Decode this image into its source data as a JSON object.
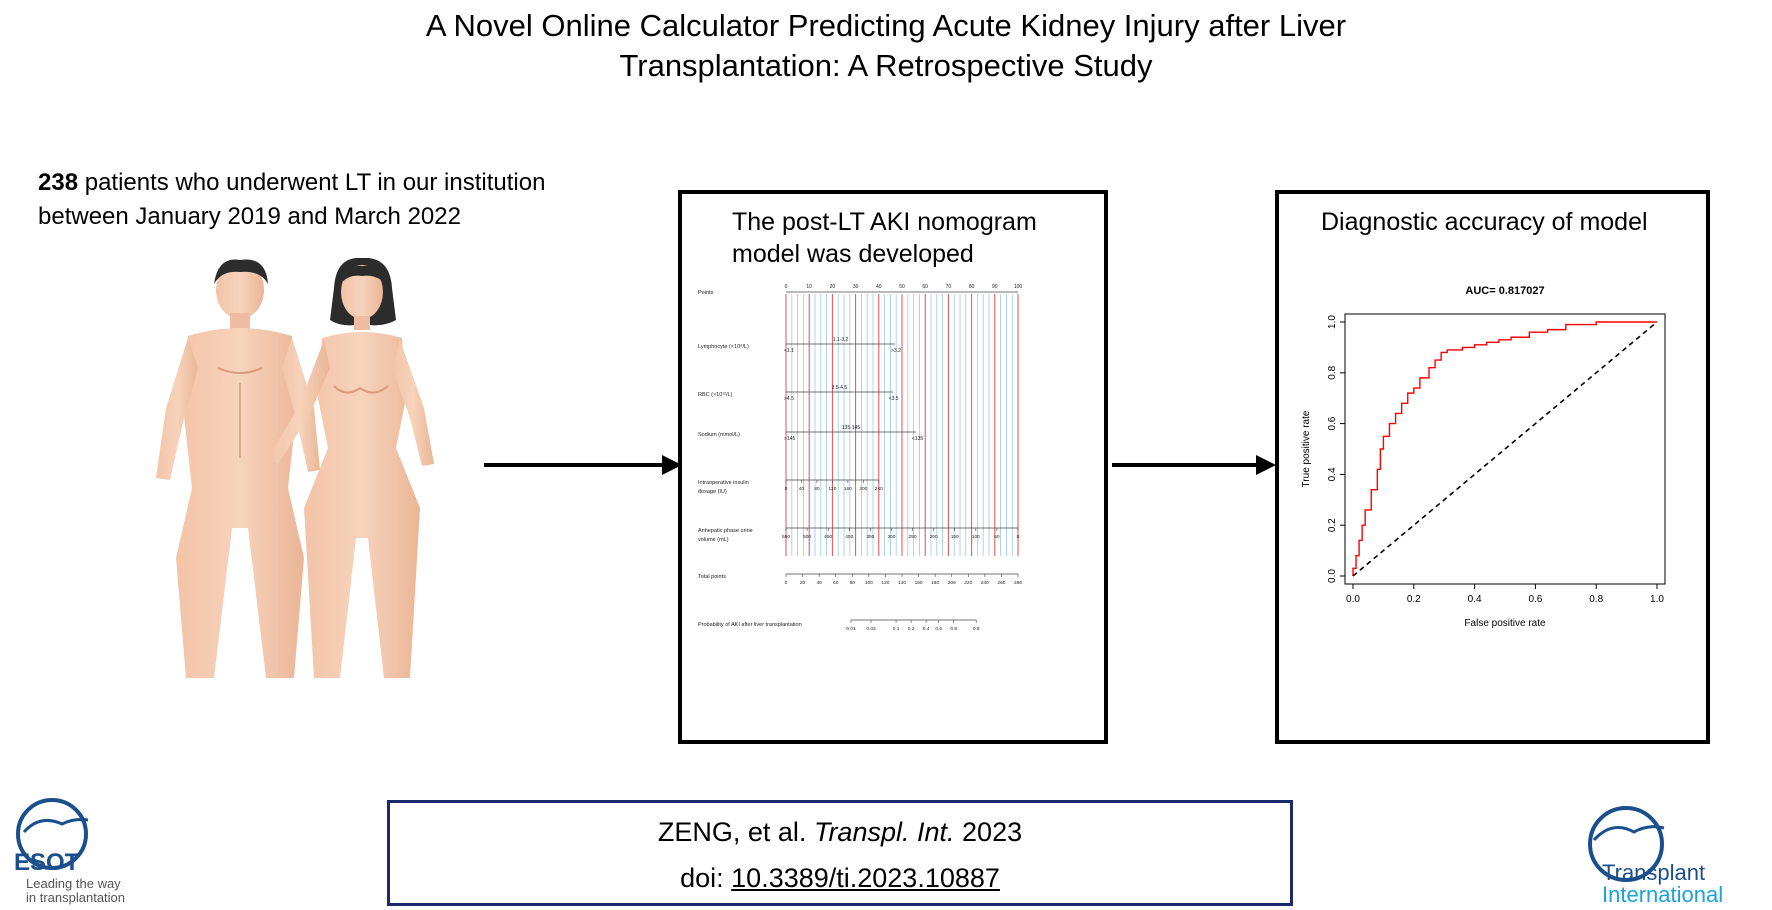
{
  "title": {
    "line1": "A Novel Online Calculator Predicting Acute Kidney Injury after Liver",
    "line2": "Transplantation: A Retrospective Study"
  },
  "intro": {
    "count": "238",
    "line1_rest": " patients who underwent LT in our institution",
    "line2": "between January 2019 and March 2022"
  },
  "nomogram": {
    "title_line1": "The post-LT AKI nomogram",
    "title_line2": "model was developed",
    "rows": [
      {
        "label": "Points"
      },
      {
        "label": "Lymphocyte (×10⁹/L)"
      },
      {
        "label": "RBC (×10¹²/L)"
      },
      {
        "label": "Sodium (mmol/L)"
      },
      {
        "label": "Intraoperative insulin",
        "label2": "dosage (IU)"
      },
      {
        "label": "Anhepatic phase urine",
        "label2": "volume (mL)"
      },
      {
        "label": "Total points"
      },
      {
        "label": "Probability of AKI after liver transplantation"
      }
    ],
    "points_ticks": [
      "0",
      "10",
      "20",
      "30",
      "40",
      "50",
      "60",
      "70",
      "80",
      "90",
      "100"
    ],
    "lymphocyte": {
      "mid": "1.1-3.2",
      "left": "<1.1",
      "right": ">3.2"
    },
    "rbc": {
      "mid": "3.5-4.5",
      "left": ">4.5",
      "right": "<3.5"
    },
    "sodium": {
      "mid": "135-145",
      "left": ">145",
      "right": "<135"
    },
    "insulin_ticks": [
      "0",
      "40",
      "80",
      "120",
      "160",
      "200",
      "240"
    ],
    "urine_ticks": [
      "550",
      "500",
      "450",
      "400",
      "350",
      "300",
      "250",
      "200",
      "150",
      "100",
      "50",
      "0"
    ],
    "total_ticks": [
      "0",
      "20",
      "40",
      "60",
      "80",
      "100",
      "120",
      "140",
      "160",
      "180",
      "200",
      "220",
      "240",
      "260",
      "280"
    ],
    "prob_ticks": [
      "0.01",
      "0.03",
      "0.1",
      "0.2",
      "0.4",
      "0.6",
      "0.8",
      "0.9"
    ]
  },
  "roc": {
    "panel_title": "Diagnostic accuracy of model",
    "chart_data": {
      "type": "line",
      "title": "AUC= 0.817027",
      "xlabel": "False positive rate",
      "ylabel": "True positive rate",
      "xlim": [
        0,
        1
      ],
      "ylim": [
        0,
        1
      ],
      "xticks": [
        "0.0",
        "0.2",
        "0.4",
        "0.6",
        "0.8",
        "1.0"
      ],
      "yticks": [
        "0.0",
        "0.2",
        "0.4",
        "0.6",
        "0.8",
        "1.0"
      ],
      "series": [
        {
          "color": "#ff0000",
          "x": [
            0.0,
            0.0,
            0.01,
            0.01,
            0.02,
            0.02,
            0.03,
            0.03,
            0.04,
            0.04,
            0.06,
            0.06,
            0.08,
            0.08,
            0.09,
            0.09,
            0.1,
            0.1,
            0.12,
            0.12,
            0.14,
            0.14,
            0.16,
            0.16,
            0.18,
            0.18,
            0.2,
            0.2,
            0.22,
            0.22,
            0.25,
            0.25,
            0.27,
            0.27,
            0.29,
            0.29,
            0.31,
            0.31,
            0.33,
            0.33,
            0.36,
            0.36,
            0.4,
            0.4,
            0.44,
            0.44,
            0.48,
            0.48,
            0.52,
            0.52,
            0.58,
            0.58,
            0.64,
            0.64,
            0.7,
            0.7,
            0.8,
            0.8,
            1.0
          ],
          "y": [
            0.0,
            0.03,
            0.03,
            0.08,
            0.08,
            0.14,
            0.14,
            0.2,
            0.2,
            0.26,
            0.26,
            0.34,
            0.34,
            0.42,
            0.42,
            0.5,
            0.5,
            0.55,
            0.55,
            0.6,
            0.6,
            0.64,
            0.64,
            0.68,
            0.68,
            0.72,
            0.72,
            0.74,
            0.74,
            0.78,
            0.78,
            0.82,
            0.82,
            0.85,
            0.85,
            0.88,
            0.88,
            0.89,
            0.89,
            0.89,
            0.89,
            0.9,
            0.9,
            0.91,
            0.91,
            0.92,
            0.92,
            0.93,
            0.93,
            0.94,
            0.94,
            0.96,
            0.96,
            0.97,
            0.97,
            0.99,
            0.99,
            1.0,
            1.0
          ]
        },
        {
          "color": "#000000",
          "dashed": true,
          "x": [
            0,
            1
          ],
          "y": [
            0,
            1
          ]
        }
      ]
    }
  },
  "citation": {
    "authors": "ZENG, et al.",
    "journal": "Transpl. Int.",
    "year": "2023",
    "doi_prefix": "doi:",
    "doi": "10.3389/ti.2023.10887"
  },
  "logos": {
    "esot_name": "ESOT",
    "esot_tag1": "Leading the way",
    "esot_tag2": "in transplantation",
    "ti_line1": "Transplant",
    "ti_line2": "International",
    "esot_color": "#1b4f8c",
    "ti_color": "#1aa3d8"
  }
}
